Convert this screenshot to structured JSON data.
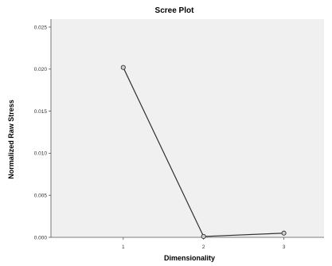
{
  "chart_data": {
    "type": "line",
    "title": "Scree Plot",
    "xlabel": "Dimensionality",
    "ylabel": "Normalized Raw Stress",
    "x": [
      1,
      2,
      3
    ],
    "x_tick_labels": [
      "1",
      "2",
      "3"
    ],
    "series": [
      {
        "values": [
          0.0202,
          0.0001,
          0.0005
        ]
      }
    ],
    "ylim": [
      0,
      0.025
    ],
    "y_ticks": [
      0.0,
      0.005,
      0.01,
      0.015,
      0.02,
      0.025
    ],
    "y_tick_labels": [
      "0.000",
      "0.005",
      "0.010",
      "0.015",
      "0.020",
      "0.025"
    ],
    "xlim": [
      0.1,
      3.5
    ],
    "grid": false,
    "colors": {
      "plot_background": "#f0f0f0",
      "line": "#303030",
      "marker_fill": "#cfcfcf",
      "axis": "#555555"
    }
  }
}
